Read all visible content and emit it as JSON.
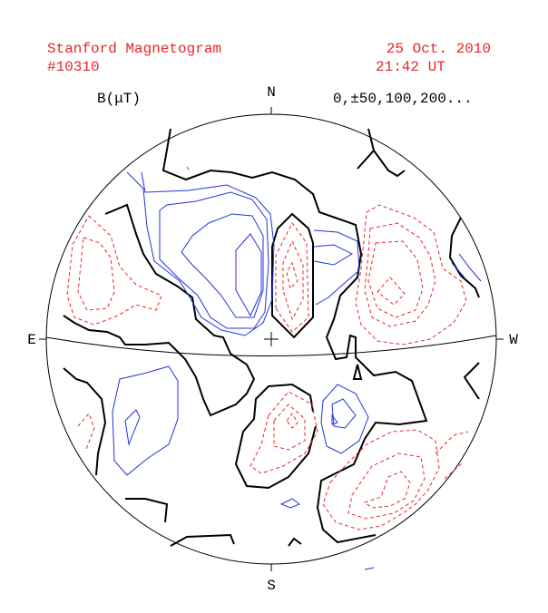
{
  "header": {
    "title": "Stanford Magnetogram",
    "id": "#10310",
    "date": "25 Oct. 2010",
    "time": "21:42 UT"
  },
  "legend": {
    "unit": "B(μT)",
    "levels": "0,±50,100,200..."
  },
  "directions": {
    "north": "N",
    "south": "S",
    "east": "E",
    "west": "W"
  }
}
